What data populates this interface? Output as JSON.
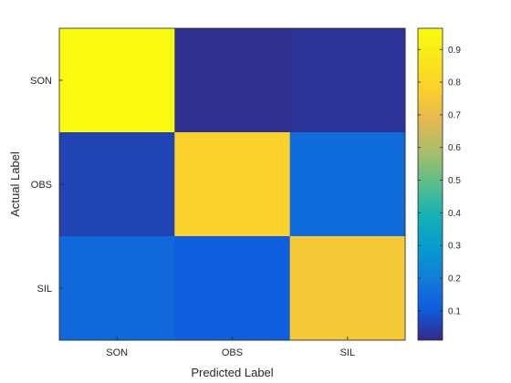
{
  "chart_data": {
    "type": "heatmap",
    "xlabel": "Predicted Label",
    "ylabel": "Actual Label",
    "x_categories": [
      "SON",
      "OBS",
      "SIL"
    ],
    "y_categories": [
      "SON",
      "OBS",
      "SIL"
    ],
    "values": [
      [
        0.96,
        0.02,
        0.03
      ],
      [
        0.06,
        0.79,
        0.15
      ],
      [
        0.14,
        0.11,
        0.75
      ]
    ],
    "colormap": "parula",
    "colorbar": {
      "range": [
        0.01,
        0.965
      ],
      "ticks": [
        0.1,
        0.2,
        0.3,
        0.4,
        0.5,
        0.6,
        0.7,
        0.8,
        0.9
      ],
      "tick_labels": [
        "0.1",
        "0.2",
        "0.3",
        "0.4",
        "0.5",
        "0.6",
        "0.7",
        "0.8",
        "0.9"
      ],
      "position": "right"
    },
    "grid": false
  }
}
